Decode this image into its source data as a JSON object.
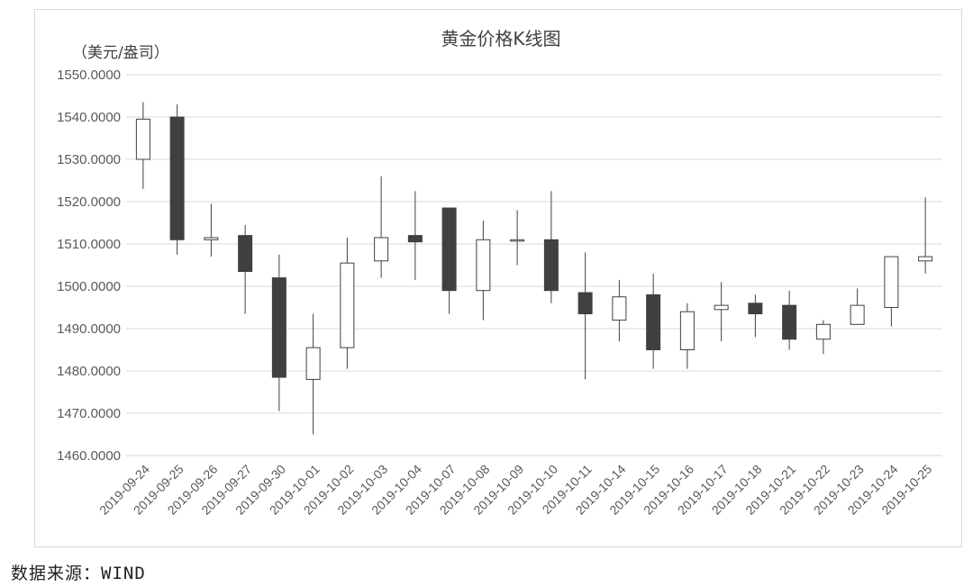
{
  "source_note": "数据来源：WIND",
  "chart_data": {
    "type": "candlestick",
    "title": "黄金价格K线图",
    "ylabel": "（美元/盎司）",
    "xlabel": "",
    "ylim": [
      1460,
      1550
    ],
    "ytick_step": 10,
    "ytick_decimals": 4,
    "grid": true,
    "legend": "none",
    "colors": {
      "up": "#ffffff",
      "down": "#404040",
      "stroke": "#404040",
      "grid": "#d9d9d9"
    },
    "categories": [
      "2019-09-24",
      "2019-09-25",
      "2019-09-26",
      "2019-09-27",
      "2019-09-30",
      "2019-10-01",
      "2019-10-02",
      "2019-10-03",
      "2019-10-04",
      "2019-10-07",
      "2019-10-08",
      "2019-10-09",
      "2019-10-10",
      "2019-10-11",
      "2019-10-14",
      "2019-10-15",
      "2019-10-16",
      "2019-10-17",
      "2019-10-18",
      "2019-10-21",
      "2019-10-22",
      "2019-10-23",
      "2019-10-24",
      "2019-10-25"
    ],
    "open": [
      1530.0,
      1540.0,
      1511.0,
      1512.0,
      1502.0,
      1478.0,
      1485.5,
      1506.0,
      1512.0,
      1518.5,
      1499.0,
      1511.0,
      1511.0,
      1498.5,
      1492.0,
      1498.0,
      1485.0,
      1494.5,
      1496.0,
      1495.5,
      1487.5,
      1491.0,
      1495.0,
      1506.0
    ],
    "high": [
      1543.5,
      1543.0,
      1519.5,
      1514.5,
      1507.5,
      1493.5,
      1511.5,
      1526.0,
      1522.5,
      1518.5,
      1515.5,
      1518.0,
      1522.5,
      1508.0,
      1501.5,
      1503.0,
      1496.0,
      1501.0,
      1498.0,
      1499.0,
      1492.0,
      1499.5,
      1507.0,
      1521.0
    ],
    "low": [
      1523.0,
      1507.5,
      1507.0,
      1493.5,
      1470.5,
      1465.0,
      1480.5,
      1502.0,
      1501.5,
      1493.5,
      1492.0,
      1505.0,
      1496.0,
      1478.0,
      1487.0,
      1480.5,
      1480.5,
      1487.0,
      1488.0,
      1485.0,
      1484.0,
      1491.0,
      1490.5,
      1503.0
    ],
    "close": [
      1539.5,
      1511.0,
      1511.5,
      1503.5,
      1478.5,
      1485.5,
      1505.5,
      1511.5,
      1510.5,
      1499.0,
      1511.0,
      1511.0,
      1499.0,
      1493.5,
      1497.5,
      1485.0,
      1494.0,
      1495.5,
      1493.5,
      1487.5,
      1491.0,
      1495.5,
      1507.0,
      1507.0
    ]
  }
}
